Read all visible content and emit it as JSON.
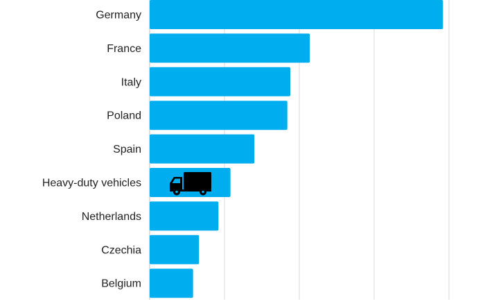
{
  "chart_data": {
    "type": "bar",
    "orientation": "horizontal",
    "categories": [
      "Germany",
      "France",
      "Italy",
      "Poland",
      "Spain",
      "Heavy-duty vehicles",
      "Netherlands",
      "Czechia",
      "Belgium"
    ],
    "values": [
      196,
      107,
      94,
      92,
      70,
      54,
      46,
      33,
      29
    ],
    "xlim": [
      0,
      200
    ],
    "grid": true,
    "bar_color": "#00adef",
    "icon": {
      "category": "Heavy-duty vehicles",
      "name": "truck-icon",
      "color": "#000000"
    }
  }
}
